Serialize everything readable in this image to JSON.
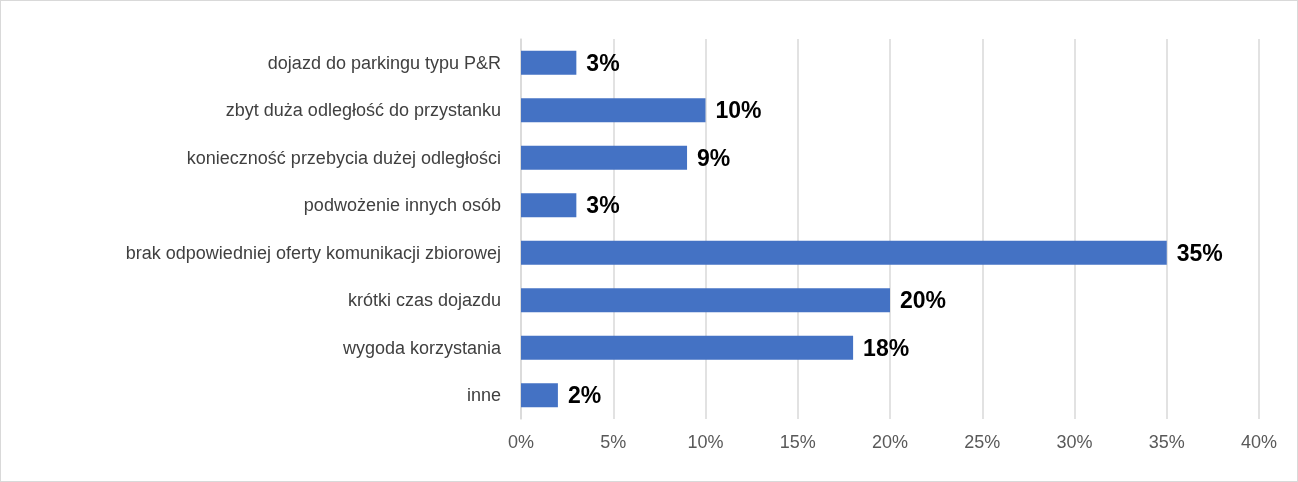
{
  "chart_data": {
    "type": "bar",
    "orientation": "horizontal",
    "categories": [
      "dojazd do parkingu typu P&R",
      "zbyt duża odległość do przystanku",
      "konieczność przebycia dużej odległości",
      "podwożenie innych osób",
      "brak odpowiedniej oferty komunikacji zbiorowej",
      "krótki czas dojazdu",
      "wygoda korzystania",
      "inne"
    ],
    "values": [
      3,
      10,
      9,
      3,
      35,
      20,
      18,
      2
    ],
    "value_labels": [
      "3%",
      "10%",
      "9%",
      "3%",
      "35%",
      "20%",
      "18%",
      "2%"
    ],
    "color": "#4472c4",
    "xlim": [
      0,
      40
    ],
    "xticks": [
      {
        "value": 0,
        "label": "0%"
      },
      {
        "value": 5,
        "label": "5%"
      },
      {
        "value": 10,
        "label": "10%"
      },
      {
        "value": 15,
        "label": "15%"
      },
      {
        "value": 20,
        "label": "20%"
      },
      {
        "value": 25,
        "label": "25%"
      },
      {
        "value": 30,
        "label": "30%"
      },
      {
        "value": 35,
        "label": "35%"
      },
      {
        "value": 40,
        "label": "40%"
      }
    ],
    "grid": "x"
  }
}
